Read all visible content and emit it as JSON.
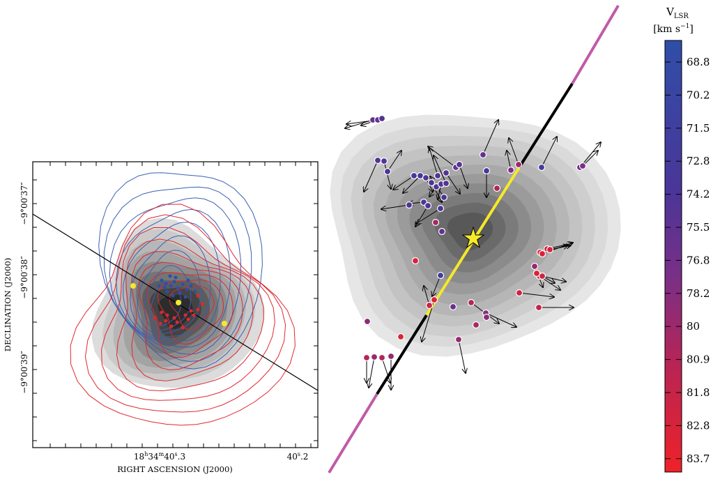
{
  "colors": {
    "blue_contour": "#3a5fb4",
    "red_contour": "#e0272f",
    "axis_line": "#000000",
    "yellow_star": "#f5e92a",
    "pink_segment": "#c05aa8"
  },
  "chart_data": [
    {
      "type": "contour",
      "panel": "left",
      "xlabel": "RIGHT ASCENSION (J2000)",
      "ylabel": "DECLINATION (J2000)",
      "x_ticks": [
        {
          "label_main": "18",
          "sup1": "h",
          "mid": "34",
          "sup2": "m",
          "tail": "40",
          "sup3": "s",
          "tail2": ".3"
        },
        {
          "label_main": "40",
          "sup1": "s",
          "tail": ".2"
        }
      ],
      "y_ticks": [
        "−9°00′37″",
        "−9°00′38″",
        "−9°00′39″"
      ],
      "contour_sets": [
        {
          "color": "blue_contour",
          "role": "blueshifted emission",
          "levels": 9
        },
        {
          "color": "red_contour",
          "role": "redshifted emission",
          "levels": 9
        }
      ],
      "grayscale": {
        "levels": 9
      },
      "markers": {
        "yellow_points": 3,
        "blue_points": 18,
        "red_points": 16
      }
    },
    {
      "type": "scatter",
      "panel": "right",
      "color_variable": "V_LSR",
      "grayscale": {
        "levels": 11
      },
      "points_count": 70,
      "arrows": true,
      "center_marker": "star"
    },
    {
      "type": "colorbar",
      "title_main": "V",
      "title_sub": "LSR",
      "units_open": "[km s",
      "units_sup": "−1",
      "units_close": "]",
      "ticks": [
        "68.8",
        "70.2",
        "71.5",
        "72.8",
        "74.2",
        "75.5",
        "76.8",
        "78.2",
        "80",
        "80.9",
        "81.8",
        "82.8",
        "83.7"
      ],
      "vmin": 68.8,
      "vmax": 83.7
    }
  ]
}
